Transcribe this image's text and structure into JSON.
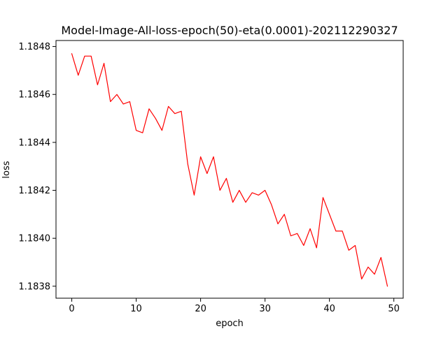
{
  "chart_data": {
    "type": "line",
    "title": "Model-Image-All-loss-epoch(50)-eta(0.0001)-202112290327",
    "xlabel": "epoch",
    "ylabel": "loss",
    "xlim": [
      -2.45,
      51.45
    ],
    "ylim": [
      1.18375,
      1.184825
    ],
    "x_ticks": [
      0,
      10,
      20,
      30,
      40,
      50
    ],
    "y_ticks": [
      1.1838,
      1.184,
      1.1842,
      1.1844,
      1.1846,
      1.1848
    ],
    "y_tick_labels": [
      "1.1838",
      "1.1840",
      "1.1842",
      "1.1844",
      "1.1846",
      "1.1848"
    ],
    "grid": false,
    "series": [
      {
        "color": "#ff0000",
        "x": [
          0,
          1,
          2,
          3,
          4,
          5,
          6,
          7,
          8,
          9,
          10,
          11,
          12,
          13,
          14,
          15,
          16,
          17,
          18,
          19,
          20,
          21,
          22,
          23,
          24,
          25,
          26,
          27,
          28,
          29,
          30,
          31,
          32,
          33,
          34,
          35,
          36,
          37,
          38,
          39,
          40,
          41,
          42,
          43,
          44,
          45,
          46,
          47,
          48,
          49
        ],
        "values": [
          1.18477,
          1.18468,
          1.18476,
          1.18476,
          1.18464,
          1.18473,
          1.18457,
          1.1846,
          1.18456,
          1.18457,
          1.18445,
          1.18444,
          1.18454,
          1.1845,
          1.18445,
          1.18455,
          1.18452,
          1.18453,
          1.18431,
          1.18418,
          1.18434,
          1.18427,
          1.18434,
          1.1842,
          1.18425,
          1.18415,
          1.1842,
          1.18415,
          1.18419,
          1.18418,
          1.1842,
          1.18414,
          1.18406,
          1.1841,
          1.18401,
          1.18402,
          1.18397,
          1.18404,
          1.18396,
          1.18417,
          1.1841,
          1.18403,
          1.18403,
          1.18395,
          1.18397,
          1.18383,
          1.18388,
          1.18385,
          1.18392,
          1.1838
        ]
      }
    ]
  }
}
